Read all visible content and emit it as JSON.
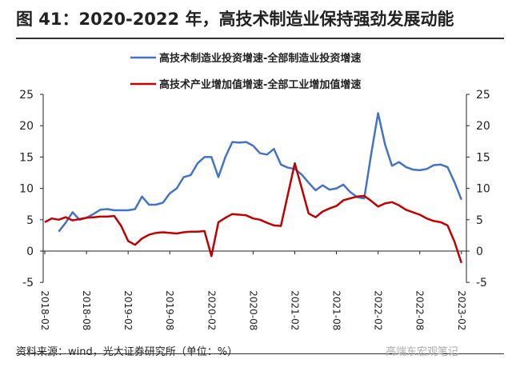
{
  "title": "图 41：2020-2022 年，高技术制造业保持强劲发展动能",
  "source": "资料来源：wind，光大证券研究所（单位：%）",
  "watermark": "高端东宏观笔记",
  "chart_data": {
    "type": "line",
    "title": "图 41：2020-2022 年，高技术制造业保持强劲发展动能",
    "xlabel": "",
    "ylabel": "",
    "ylim": [
      -5,
      25
    ],
    "yticks": [
      "25",
      "20",
      "15",
      "10",
      "5",
      "0",
      "-5"
    ],
    "ytick_values": [
      25,
      20,
      15,
      10,
      5,
      0,
      -5
    ],
    "x_start": "2018-02",
    "x_tick_labels": [
      "2018-02",
      "2018-08",
      "2019-02",
      "2019-08",
      "2020-02",
      "2020-08",
      "2021-02",
      "2021-08",
      "2022-02",
      "2022-08",
      "2023-02"
    ],
    "legend_position": "top-center",
    "series": [
      {
        "name": "高技术制造业投资增速-全部制造业投资增速",
        "color": "#4472C4",
        "values": [
          null,
          null,
          3.1,
          4.5,
          6.2,
          5.0,
          5.3,
          5.9,
          6.6,
          6.7,
          6.5,
          6.5,
          6.5,
          6.7,
          8.7,
          7.4,
          7.4,
          7.7,
          9.2,
          10.0,
          11.8,
          12.1,
          14.0,
          15.0,
          15.0,
          11.8,
          15.0,
          17.4,
          17.3,
          17.4,
          16.8,
          15.6,
          15.4,
          16.3,
          13.8,
          13.3,
          13.1,
          12.2,
          10.9,
          9.7,
          10.5,
          9.8,
          10.0,
          10.6,
          9.4,
          8.6,
          8.4,
          15.5,
          22.0,
          17.0,
          13.6,
          14.2,
          13.4,
          13.0,
          12.9,
          13.1,
          13.7,
          13.8,
          13.4,
          11.0,
          8.2
        ]
      },
      {
        "name": "高技术产业增加值增速-全部工业增加值增速",
        "color": "#C00000",
        "values": [
          4.6,
          5.2,
          5.0,
          5.4,
          4.9,
          5.1,
          5.3,
          5.4,
          5.5,
          5.5,
          5.6,
          4.0,
          1.6,
          1.0,
          2.0,
          2.6,
          2.9,
          3.0,
          2.9,
          2.8,
          3.0,
          3.1,
          3.1,
          3.2,
          -0.8,
          4.6,
          5.3,
          5.9,
          5.8,
          5.7,
          5.2,
          5.0,
          4.5,
          4.1,
          4.0,
          9.0,
          14.0,
          10.0,
          6.0,
          5.4,
          6.3,
          6.8,
          7.2,
          8.1,
          8.4,
          8.7,
          8.8,
          8.0,
          7.1,
          7.6,
          7.8,
          7.3,
          6.6,
          6.2,
          5.8,
          5.2,
          4.8,
          4.6,
          4.1,
          1.5,
          -1.9
        ]
      }
    ]
  }
}
